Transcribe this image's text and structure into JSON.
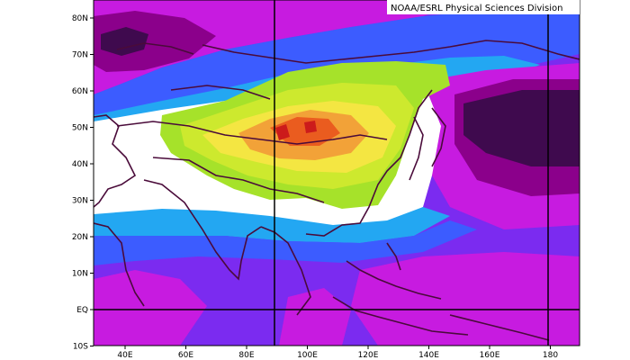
{
  "map": {
    "credit": "NOAA/ESRL Physical Sciences Division",
    "colors": {
      "frame": "#000000",
      "coast": "#4a0b3a",
      "deep_purple": "#3f0a4e",
      "magenta_dark": "#8b008b",
      "magenta": "#c71be0",
      "violet": "#7b2bf0",
      "blue": "#3c5cff",
      "cyan": "#23a7f2",
      "white": "#ffffff",
      "green_light": "#a6e22a",
      "green_yellow": "#cde92e",
      "yellow": "#f4e642",
      "orange": "#f2a238",
      "red_orange": "#ea5c1f",
      "red": "#cc1b1b"
    },
    "lat_labels": [
      "80N",
      "70N",
      "60N",
      "50N",
      "40N",
      "30N",
      "20N",
      "10N",
      "EQ",
      "10S"
    ],
    "lon_labels": [
      "40E",
      "60E",
      "80E",
      "100E",
      "120E",
      "140E",
      "160E",
      "180"
    ],
    "reference_lines": {
      "lon": [
        "90E",
        "180"
      ],
      "lat": [
        "EQ"
      ]
    }
  }
}
